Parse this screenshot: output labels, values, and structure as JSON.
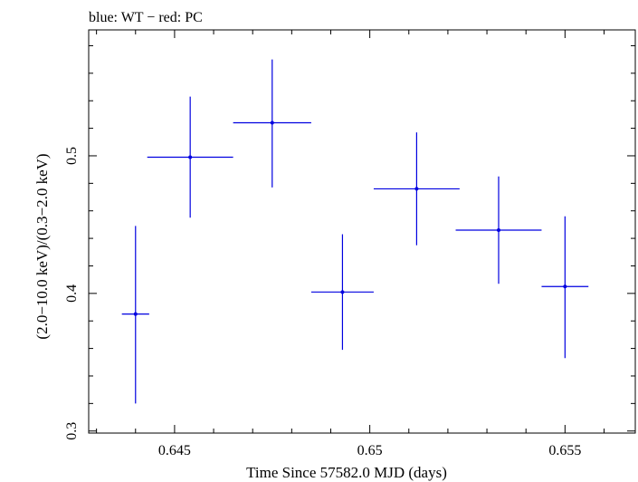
{
  "chart_data": {
    "type": "scatter",
    "title": "blue: WT − red: PC",
    "xlabel": "Time Since 57582.0 MJD (days)",
    "ylabel": "(2.0−10.0 keV)/(0.3−2.0 keV)",
    "xlim": [
      0.6428,
      0.6568
    ],
    "ylim": [
      0.2985,
      0.5915
    ],
    "x_ticks": [
      0.645,
      0.65,
      0.655
    ],
    "x_tick_labels": [
      "0.645",
      "0.65",
      "0.655"
    ],
    "y_ticks": [
      0.3,
      0.4,
      0.5
    ],
    "y_tick_labels": [
      "0.3",
      "0.4",
      "0.5"
    ],
    "grid": false,
    "colors": {
      "series": "#0000e0",
      "frame": "#000000"
    },
    "series": [
      {
        "color": "#0000e0",
        "points": [
          {
            "x": 0.644,
            "y": 0.385,
            "xerr": 0.00035,
            "yerr_low": 0.065,
            "yerr_high": 0.064
          },
          {
            "x": 0.6454,
            "y": 0.499,
            "xerr": 0.0011,
            "yerr_low": 0.044,
            "yerr_high": 0.044
          },
          {
            "x": 0.6475,
            "y": 0.524,
            "xerr": 0.001,
            "yerr_low": 0.047,
            "yerr_high": 0.046
          },
          {
            "x": 0.6493,
            "y": 0.401,
            "xerr": 0.0008,
            "yerr_low": 0.042,
            "yerr_high": 0.042
          },
          {
            "x": 0.6512,
            "y": 0.476,
            "xerr": 0.0011,
            "yerr_low": 0.041,
            "yerr_high": 0.041
          },
          {
            "x": 0.6533,
            "y": 0.446,
            "xerr": 0.0011,
            "yerr_low": 0.039,
            "yerr_high": 0.039
          },
          {
            "x": 0.655,
            "y": 0.405,
            "xerr": 0.0006,
            "yerr_low": 0.052,
            "yerr_high": 0.051
          }
        ]
      }
    ]
  }
}
